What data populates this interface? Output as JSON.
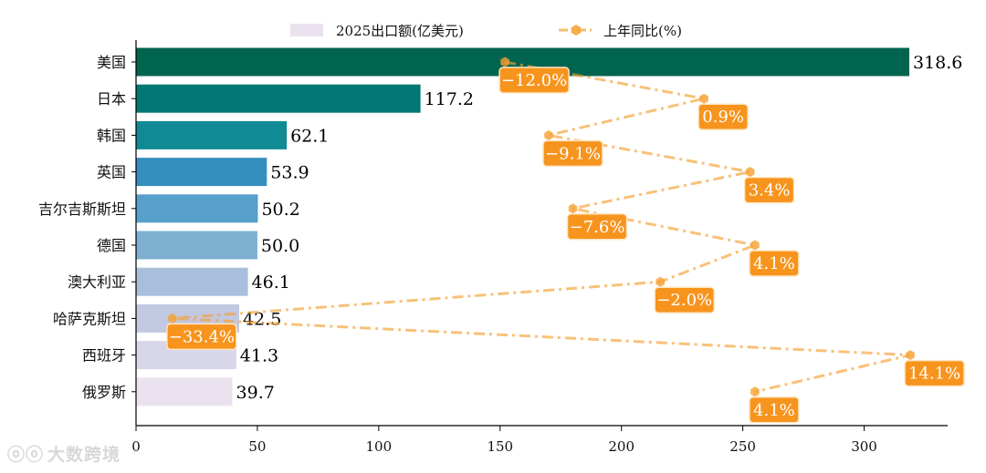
{
  "chart_data": {
    "type": "bar",
    "orientation": "horizontal",
    "categories": [
      "美国",
      "日本",
      "韩国",
      "英国",
      "吉尔吉斯斯坦",
      "德国",
      "澳大利亚",
      "哈萨克斯坦",
      "西班牙",
      "俄罗斯"
    ],
    "series": [
      {
        "name": "2025出口额(亿美元)",
        "values": [
          318.6,
          117.2,
          62.1,
          53.9,
          50.2,
          50.0,
          46.1,
          42.5,
          41.3,
          39.7
        ],
        "value_labels": [
          "318.6",
          "117.2",
          "62.1",
          "53.9",
          "50.2",
          "50.0",
          "46.1",
          "42.5",
          "41.3",
          "39.7"
        ],
        "colors": [
          "#00644f",
          "#017873",
          "#108a94",
          "#348fbe",
          "#57a0cb",
          "#7db0d1",
          "#a8bedd",
          "#c2c8e1",
          "#d8d6e9",
          "#ebe2f0"
        ]
      },
      {
        "name": "上年同比(%)",
        "type": "line",
        "color": "#f5a031",
        "values": [
          -12.0,
          0.9,
          -9.1,
          3.4,
          -7.6,
          4.1,
          -2.0,
          -33.4,
          14.1,
          4.1
        ],
        "value_labels": [
          "−12.0%",
          "0.9%",
          "−9.1%",
          "3.4%",
          "−7.6%",
          "4.1%",
          "−2.0%",
          "−33.4%",
          "14.1%",
          "4.1%"
        ],
        "x_plotted": [
          152,
          234,
          170,
          253,
          180,
          255,
          216,
          15,
          319,
          255
        ]
      }
    ],
    "xlim": [
      0,
      335
    ],
    "xticks": [
      "0",
      "50",
      "100",
      "150",
      "200",
      "250",
      "300"
    ],
    "legend_position": "top-center",
    "grid": false
  },
  "watermark": "大数跨境",
  "watermark_icon": "ellipsis-chat-icon"
}
